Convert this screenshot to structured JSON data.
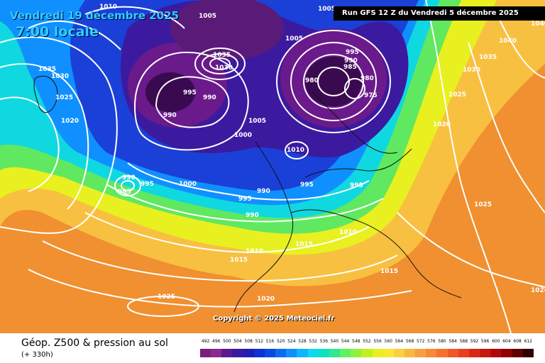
{
  "header": {
    "date": "Vendredi 19 décembre 2025",
    "time": "7:00 locale",
    "run": "Run GFS 12 Z du Vendredi 5 décembre 2025"
  },
  "copyright": "Copyright © 2025 Meteociel.fr",
  "footer": {
    "title": "Géop. Z500 & pression au sol",
    "subtitle": "(+ 330h)"
  },
  "legend": {
    "labels": [
      "492",
      "496",
      "500",
      "504",
      "508",
      "512",
      "516",
      "520",
      "524",
      "528",
      "532",
      "536",
      "540",
      "544",
      "548",
      "552",
      "556",
      "560",
      "564",
      "568",
      "572",
      "576",
      "580",
      "584",
      "588",
      "592",
      "596",
      "600",
      "604",
      "608",
      "612"
    ],
    "colors": [
      "#7a1f7a",
      "#8a2a8f",
      "#5c1a8f",
      "#3b1aa0",
      "#1f1fb5",
      "#1030d0",
      "#0a4ae0",
      "#0a6cf0",
      "#1090ff",
      "#10b4ff",
      "#10d8f0",
      "#10e0c0",
      "#30e890",
      "#60f060",
      "#90f040",
      "#c0f020",
      "#e8f020",
      "#f8e830",
      "#f8d040",
      "#f8b840",
      "#f8a040",
      "#f88838",
      "#f87030",
      "#f05828",
      "#e84020",
      "#d82818",
      "#c81810",
      "#b00808",
      "#900000",
      "#600000",
      "#300000"
    ]
  },
  "isobars": [
    {
      "value": "1010",
      "pos": "top-left"
    },
    {
      "value": "1005",
      "pos": "top-center"
    },
    {
      "value": "1035",
      "pos": "high-center"
    },
    {
      "value": "1030",
      "pos": "high-center"
    },
    {
      "value": "995",
      "pos": "low"
    },
    {
      "value": "990",
      "pos": "low"
    },
    {
      "value": "985",
      "pos": "low"
    },
    {
      "value": "980",
      "pos": "low-east"
    },
    {
      "value": "975",
      "pos": "low-east"
    },
    {
      "value": "1000",
      "pos": "atlantic"
    },
    {
      "value": "1025",
      "pos": "azores"
    },
    {
      "value": "1020",
      "pos": "iberia"
    },
    {
      "value": "1015",
      "pos": "med"
    },
    {
      "value": "1040",
      "pos": "russia"
    }
  ]
}
